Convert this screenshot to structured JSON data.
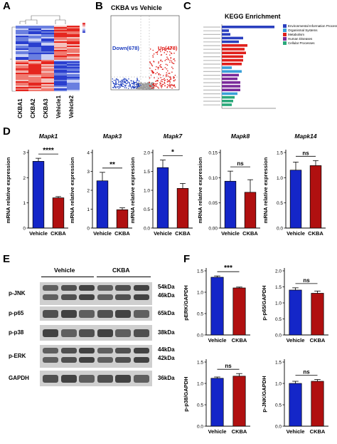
{
  "panels": {
    "a": "A",
    "b": "B",
    "c": "C",
    "d": "D",
    "e": "E",
    "f": "F"
  },
  "heatmap": {
    "samples": [
      "CKBA1",
      "CKBA2",
      "CKBA3",
      "Vehicle1",
      "Vehicle2"
    ]
  },
  "volcano": {
    "title": "CKBA vs Vehicle",
    "down_label": "Down(678)",
    "up_label": "Up(478)",
    "colors": {
      "down": "#1f3fbf",
      "up": "#e0201c",
      "ns": "#9a9a9a"
    }
  },
  "kegg": {
    "title": "KEGG Enrichment",
    "legend": [
      {
        "label": "Environmental Information Processing",
        "color": "#2a3fbf"
      },
      {
        "label": "Organismal Systems",
        "color": "#3aa0d8"
      },
      {
        "label": "Metabolism",
        "color": "#e0201c"
      },
      {
        "label": "Human Diseases",
        "color": "#7a2a9a"
      },
      {
        "label": "Cellular Processes",
        "color": "#2aa87a"
      }
    ]
  },
  "qpcr": {
    "ylabel": "mRNA relative expression",
    "categories": [
      "Vehicle",
      "CKBA"
    ],
    "colors": {
      "vehicle": "#1426c8",
      "ckba": "#b01010"
    },
    "genes": [
      {
        "name": "Mapk1",
        "values": [
          2.65,
          1.2
        ],
        "errors": [
          0.12,
          0.05
        ],
        "sig": "****",
        "yticks": [
          "0",
          "1",
          "2",
          "3"
        ],
        "ymax": 3
      },
      {
        "name": "Mapk3",
        "values": [
          2.5,
          0.97
        ],
        "errors": [
          0.45,
          0.1
        ],
        "sig": "**",
        "yticks": [
          "0",
          "1",
          "2",
          "3",
          "4"
        ],
        "ymax": 4
      },
      {
        "name": "Mapk7",
        "values": [
          1.6,
          1.05
        ],
        "errors": [
          0.2,
          0.13
        ],
        "sig": "*",
        "yticks": [
          "0.0",
          "0.5",
          "1.0",
          "1.5",
          "2.0"
        ],
        "ymax": 2
      },
      {
        "name": "Mapk8",
        "values": [
          0.093,
          0.071
        ],
        "errors": [
          0.02,
          0.025
        ],
        "sig": "ns",
        "yticks": [
          "0.00",
          "0.05",
          "0.10",
          "0.15"
        ],
        "ymax": 0.15
      },
      {
        "name": "Mapk14",
        "values": [
          1.15,
          1.24
        ],
        "errors": [
          0.16,
          0.1
        ],
        "sig": "ns",
        "yticks": [
          "0.0",
          "0.5",
          "1.0",
          "1.5"
        ],
        "ymax": 1.5
      }
    ]
  },
  "western": {
    "groups": {
      "vehicle": "Vehicle",
      "ckba": "CKBA"
    },
    "rows": [
      {
        "label": "p-JNK",
        "kda": [
          "54kDa",
          "46kDa"
        ]
      },
      {
        "label": "p-p65",
        "kda": [
          "65kDa"
        ]
      },
      {
        "label": "p-p38",
        "kda": [
          "38kDa"
        ]
      },
      {
        "label": "p-ERK",
        "kda": [
          "44kDa",
          "42kDa"
        ]
      },
      {
        "label": "GAPDH",
        "kda": [
          "36kDa"
        ]
      }
    ]
  },
  "densitometry": {
    "categories": [
      "Vehicle",
      "CKBA"
    ],
    "charts": [
      {
        "ylabel": "pERK/GAPDH",
        "values": [
          1.35,
          1.1
        ],
        "errors": [
          0.03,
          0.02
        ],
        "sig": "***",
        "yticks": [
          "0.0",
          "0.5",
          "1.0",
          "1.5"
        ],
        "ymax": 1.5
      },
      {
        "ylabel": "p-p65/GAPDH",
        "values": [
          1.4,
          1.3
        ],
        "errors": [
          0.07,
          0.07
        ],
        "sig": "ns",
        "yticks": [
          "0.0",
          "0.5",
          "1.0",
          "1.5",
          "2.0"
        ],
        "ymax": 2.0
      },
      {
        "ylabel": "p-p38/GAPDH",
        "values": [
          1.12,
          1.17
        ],
        "errors": [
          0.03,
          0.06
        ],
        "sig": "ns",
        "yticks": [
          "0.0",
          "0.5",
          "1.0",
          "1.5"
        ],
        "ymax": 1.5
      },
      {
        "ylabel": "p-JNK/GAPDH",
        "values": [
          1.0,
          1.05
        ],
        "errors": [
          0.05,
          0.04
        ],
        "sig": "ns",
        "yticks": [
          "0.0",
          "0.5",
          "1.0",
          "1.5"
        ],
        "ymax": 1.5
      }
    ]
  },
  "chart_data": [
    {
      "type": "bar",
      "title": "Mapk1",
      "categories": [
        "Vehicle",
        "CKBA"
      ],
      "values": [
        2.65,
        1.2
      ],
      "ylabel": "mRNA relative expression",
      "ylim": [
        0,
        3
      ]
    },
    {
      "type": "bar",
      "title": "Mapk3",
      "categories": [
        "Vehicle",
        "CKBA"
      ],
      "values": [
        2.5,
        0.97
      ],
      "ylabel": "mRNA relative expression",
      "ylim": [
        0,
        4
      ]
    },
    {
      "type": "bar",
      "title": "Mapk7",
      "categories": [
        "Vehicle",
        "CKBA"
      ],
      "values": [
        1.6,
        1.05
      ],
      "ylabel": "mRNA relative expression",
      "ylim": [
        0,
        2
      ]
    },
    {
      "type": "bar",
      "title": "Mapk8",
      "categories": [
        "Vehicle",
        "CKBA"
      ],
      "values": [
        0.093,
        0.071
      ],
      "ylabel": "mRNA relative expression",
      "ylim": [
        0,
        0.15
      ]
    },
    {
      "type": "bar",
      "title": "Mapk14",
      "categories": [
        "Vehicle",
        "CKBA"
      ],
      "values": [
        1.15,
        1.24
      ],
      "ylabel": "mRNA relative expression",
      "ylim": [
        0,
        1.5
      ]
    },
    {
      "type": "bar",
      "categories": [
        "Vehicle",
        "CKBA"
      ],
      "values": [
        1.35,
        1.1
      ],
      "ylabel": "pERK/GAPDH",
      "ylim": [
        0,
        1.5
      ]
    },
    {
      "type": "bar",
      "categories": [
        "Vehicle",
        "CKBA"
      ],
      "values": [
        1.4,
        1.3
      ],
      "ylabel": "p-p65/GAPDH",
      "ylim": [
        0,
        2
      ]
    },
    {
      "type": "bar",
      "categories": [
        "Vehicle",
        "CKBA"
      ],
      "values": [
        1.12,
        1.17
      ],
      "ylabel": "p-p38/GAPDH",
      "ylim": [
        0,
        1.5
      ]
    },
    {
      "type": "bar",
      "categories": [
        "Vehicle",
        "CKBA"
      ],
      "values": [
        1.0,
        1.05
      ],
      "ylabel": "p-JNK/GAPDH",
      "ylim": [
        0,
        1.5
      ]
    }
  ]
}
